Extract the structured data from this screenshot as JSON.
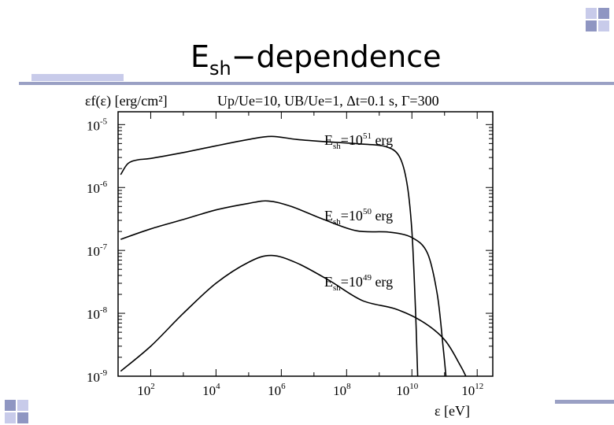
{
  "slide": {
    "title_main": "E",
    "title_sub": "sh",
    "title_rest": "−dependence"
  },
  "chart_data": {
    "type": "line",
    "title": "U_p/U_e=10, U_B/U_e=1, Δt=0.1 s, Γ=300",
    "header": {
      "ylabel": "εf(ε) [erg/cm²]",
      "params": "Up/Ue=10, UB/Ue=1, Δt=0.1 s, Γ=300"
    },
    "xlabel": "ε [eV]",
    "ylabel": "εf(ε) [erg/cm²]",
    "x_scale": "log",
    "y_scale": "log",
    "xlim": [
      10,
      3000000000000.0
    ],
    "ylim": [
      1e-09,
      1.6e-05
    ],
    "x_ticks": [
      {
        "base": "10",
        "exp": "2",
        "value": 100
      },
      {
        "base": "10",
        "exp": "4",
        "value": 10000
      },
      {
        "base": "10",
        "exp": "6",
        "value": 1000000
      },
      {
        "base": "10",
        "exp": "8",
        "value": 100000000
      },
      {
        "base": "10",
        "exp": "10",
        "value": 10000000000
      },
      {
        "base": "10",
        "exp": "12",
        "value": 1000000000000
      }
    ],
    "y_ticks": [
      {
        "base": "10",
        "exp": "-5",
        "value": 1e-05
      },
      {
        "base": "10",
        "exp": "-6",
        "value": 1e-06
      },
      {
        "base": "10",
        "exp": "-7",
        "value": 1e-07
      },
      {
        "base": "10",
        "exp": "-8",
        "value": 1e-08
      },
      {
        "base": "10",
        "exp": "-9",
        "value": 1e-09
      }
    ],
    "series": [
      {
        "label_main": "E",
        "label_sub": "sh",
        "label_eq": "=10",
        "label_exp": "51",
        "label_unit": " erg",
        "points": [
          [
            12,
            1.6e-06
          ],
          [
            20,
            2.4e-06
          ],
          [
            40,
            2.75e-06
          ],
          [
            100,
            2.9e-06
          ],
          [
            1000,
            3.6e-06
          ],
          [
            10000,
            4.6e-06
          ],
          [
            100000,
            5.8e-06
          ],
          [
            500000,
            6.5e-06
          ],
          [
            3000000,
            5.8e-06
          ],
          [
            30000000,
            5.3e-06
          ],
          [
            300000000,
            4.9e-06
          ],
          [
            1500000000,
            4.5e-06
          ],
          [
            4000000000,
            3.2e-06
          ],
          [
            7000000000,
            1.2e-06
          ],
          [
            10000000000,
            2e-07
          ],
          [
            13000000000,
            1e-08
          ],
          [
            15000000000,
            1e-09
          ]
        ]
      },
      {
        "label_main": "E",
        "label_sub": "sh",
        "label_eq": "=10",
        "label_exp": "50",
        "label_unit": " erg",
        "points": [
          [
            12,
            1.5e-07
          ],
          [
            100,
            2.2e-07
          ],
          [
            1000,
            3.1e-07
          ],
          [
            10000,
            4.4e-07
          ],
          [
            100000,
            5.6e-07
          ],
          [
            400000,
            6.1e-07
          ],
          [
            2000000,
            5e-07
          ],
          [
            20000000,
            3.1e-07
          ],
          [
            200000000,
            2.05e-07
          ],
          [
            2000000000,
            1.95e-07
          ],
          [
            10000000000,
            1.6e-07
          ],
          [
            30000000000,
            9e-08
          ],
          [
            60000000000,
            2e-08
          ],
          [
            90000000000,
            3e-09
          ],
          [
            110000000000,
            1e-09
          ]
        ]
      },
      {
        "label_main": "E",
        "label_sub": "sh",
        "label_eq": "=10",
        "label_exp": "49",
        "label_unit": " erg",
        "points": [
          [
            12,
            1.2e-09
          ],
          [
            100,
            3e-09
          ],
          [
            1000,
            1e-08
          ],
          [
            10000,
            3e-08
          ],
          [
            100000,
            6.5e-08
          ],
          [
            500000,
            8.3e-08
          ],
          [
            3000000,
            6.3e-08
          ],
          [
            30000000,
            3.3e-08
          ],
          [
            300000000,
            1.6e-08
          ],
          [
            3000000000,
            1.18e-08
          ],
          [
            20000000000,
            7.5e-09
          ],
          [
            100000000000,
            3.8e-09
          ],
          [
            300000000000,
            1.5e-09
          ],
          [
            450000000000,
            1e-09
          ]
        ]
      }
    ]
  }
}
